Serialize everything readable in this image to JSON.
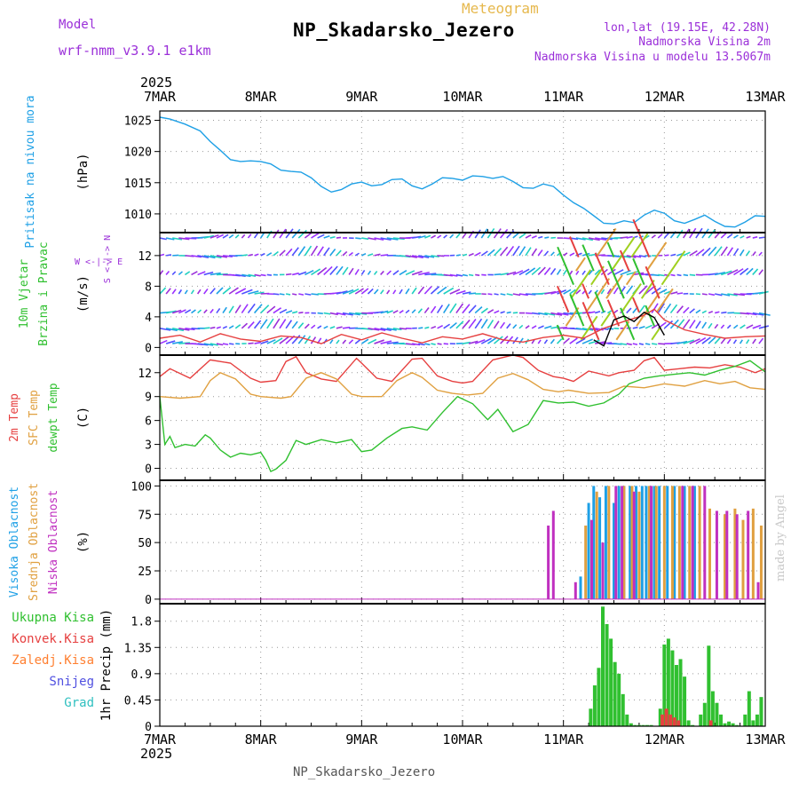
{
  "header": {
    "model_label": "Model",
    "model_value": "wrf-nmm_v3.9.1 e1km",
    "station": "NP_Skadarsko_Jezero",
    "meteogram": "Meteogram",
    "lonlat": "lon,lat (19.15E, 42.28N)",
    "altitude": "Nadmorska Visina 2m",
    "model_altitude": "Nadmorska Visina u modelu 13.5067m",
    "footer_station": "NP_Skadarsko_Jezero",
    "credit": "made by Angel"
  },
  "colors": {
    "pressure": "#1ea0e6",
    "temp2m": "#e64040",
    "sfc": "#e0a040",
    "dewpt": "#30c030",
    "cloud_high": "#1ea0e6",
    "cloud_mid": "#e0a040",
    "cloud_low": "#9b30d9",
    "precip_total": "#30c030",
    "precip_conv": "#e64040",
    "precip_frozen": "#ff7f30",
    "snow": "#5050e0",
    "hail": "#30c0c0",
    "purple": "#9b30d9",
    "wind_speed": "#e64040",
    "wind_dir": "#000000"
  },
  "chart_data": {
    "x_year": "2025",
    "x_ticks": [
      "7MAR",
      "8MAR",
      "9MAR",
      "10MAR",
      "11MAR",
      "12MAR",
      "13MAR"
    ],
    "panels": [
      {
        "id": "pressure",
        "type": "line",
        "labels": [
          {
            "text": "Pritisak na nivou mora",
            "color": "#1ea0e6"
          }
        ],
        "unit": "(hPa)",
        "ylim": [
          1007,
          1026.5
        ],
        "yticks": [
          1010,
          1015,
          1020,
          1025
        ],
        "series": [
          {
            "name": "Pritisak na nivou mora",
            "color": "#1ea0e6",
            "x": [
              0,
              0.1,
              0.25,
              0.4,
              0.5,
              0.6,
              0.7,
              0.8,
              0.9,
              1.0,
              1.1,
              1.2,
              1.3,
              1.4,
              1.5,
              1.6,
              1.7,
              1.8,
              1.9,
              2.0,
              2.1,
              2.2,
              2.3,
              2.4,
              2.5,
              2.6,
              2.7,
              2.8,
              2.9,
              3.0,
              3.1,
              3.2,
              3.3,
              3.4,
              3.5,
              3.6,
              3.7,
              3.8,
              3.9,
              4.0,
              4.1,
              4.2,
              4.3,
              4.4,
              4.5,
              4.6,
              4.7,
              4.8,
              4.9,
              5.0,
              5.1,
              5.2,
              5.3,
              5.4,
              5.5,
              5.6,
              5.7,
              5.8,
              5.9,
              6.0
            ],
            "y": [
              1025.5,
              1025.2,
              1024.4,
              1023.3,
              1021.6,
              1020.2,
              1018.7,
              1018.4,
              1018.5,
              1018.4,
              1018.0,
              1017.0,
              1016.8,
              1016.7,
              1015.8,
              1014.4,
              1013.5,
              1013.9,
              1014.8,
              1015.1,
              1014.5,
              1014.7,
              1015.5,
              1015.6,
              1014.5,
              1014.0,
              1014.8,
              1015.8,
              1015.7,
              1015.4,
              1016.1,
              1016.0,
              1015.7,
              1016.0,
              1015.2,
              1014.2,
              1014.1,
              1014.8,
              1014.4,
              1013.0,
              1011.8,
              1010.9,
              1009.7,
              1008.5,
              1008.4,
              1008.9,
              1008.6,
              1009.8,
              1010.6,
              1010.1,
              1008.9,
              1008.5,
              1009.1,
              1009.8,
              1008.8,
              1008.0,
              1007.9,
              1008.7,
              1009.7,
              1009.6
            ]
          }
        ]
      },
      {
        "id": "wind",
        "type": "line",
        "labels": [
          {
            "text": "10m Vjetar",
            "color": "#30c030"
          },
          {
            "text": "Brzina i Pravac",
            "color": "#30c030"
          }
        ],
        "unit": "(m/s)",
        "compass": "W <-|-> E",
        "compass_v": "S <-|-> N",
        "ylim": [
          -1,
          15
        ],
        "yticks": [
          0,
          4,
          8,
          12
        ],
        "series": [
          {
            "name": "speed",
            "color": "#e64040",
            "x": [
              0,
              0.2,
              0.4,
              0.6,
              0.8,
              1.0,
              1.2,
              1.4,
              1.6,
              1.8,
              2.0,
              2.2,
              2.4,
              2.6,
              2.8,
              3.0,
              3.2,
              3.4,
              3.6,
              3.8,
              4.0,
              4.2,
              4.4,
              4.6,
              4.8,
              4.9,
              5.0,
              5.2,
              5.4,
              5.6,
              5.8,
              6.0
            ],
            "y": [
              1.2,
              1.6,
              0.7,
              1.8,
              1.1,
              0.8,
              1.5,
              1.3,
              0.5,
              1.7,
              1.0,
              1.9,
              1.2,
              0.6,
              1.4,
              1.1,
              1.8,
              1.0,
              0.7,
              1.3,
              1.6,
              1.2,
              2.5,
              3.4,
              4.2,
              5.0,
              3.6,
              2.3,
              1.7,
              1.2,
              1.4,
              1.5
            ]
          },
          {
            "name": "direction",
            "color": "#000000",
            "x": [
              4.3,
              4.4,
              4.5,
              4.6,
              4.7,
              4.8,
              4.9,
              5.0
            ],
            "y": [
              1.0,
              0.2,
              3.6,
              4.1,
              3.4,
              4.6,
              3.9,
              1.6
            ]
          }
        ],
        "arrow_rows": [
          0.5,
          2.5,
          4.5,
          7.0,
          9.5,
          12.0,
          14.3
        ]
      },
      {
        "id": "temp",
        "type": "line",
        "labels": [
          {
            "text": "2m Temp",
            "color": "#e64040"
          },
          {
            "text": "SFC Temp",
            "color": "#e0a040"
          },
          {
            "text": "dewpt Temp",
            "color": "#30c030"
          }
        ],
        "unit": "(C)",
        "ylim": [
          -1.5,
          14.2
        ],
        "yticks": [
          0,
          3,
          6,
          9,
          12
        ],
        "series": [
          {
            "name": "2m Temp",
            "color": "#e64040",
            "x": [
              0,
              0.1,
              0.3,
              0.5,
              0.7,
              0.9,
              1.0,
              1.15,
              1.25,
              1.35,
              1.45,
              1.6,
              1.75,
              1.95,
              2.0,
              2.15,
              2.3,
              2.5,
              2.6,
              2.75,
              2.9,
              3.0,
              3.1,
              3.3,
              3.5,
              3.6,
              3.75,
              3.9,
              4.0,
              4.1,
              4.25,
              4.45,
              4.55,
              4.7,
              4.8,
              4.9,
              5.0,
              5.15,
              5.3,
              5.45,
              5.6,
              5.75,
              5.9,
              6.0
            ],
            "y": [
              11.5,
              12.5,
              11.3,
              13.6,
              13.2,
              11.3,
              10.8,
              11.0,
              13.4,
              14.0,
              12.0,
              11.2,
              10.9,
              13.8,
              13.2,
              11.3,
              10.9,
              13.7,
              13.8,
              11.6,
              10.9,
              10.7,
              10.9,
              13.6,
              14.2,
              13.9,
              12.3,
              11.5,
              11.3,
              10.9,
              12.2,
              11.6,
              12.0,
              12.3,
              13.5,
              13.9,
              12.3,
              12.5,
              12.7,
              12.6,
              13.0,
              12.7,
              12.0,
              12.5
            ]
          },
          {
            "name": "SFC Temp",
            "color": "#e0a040",
            "x": [
              0,
              0.2,
              0.4,
              0.5,
              0.6,
              0.75,
              0.9,
              1.0,
              1.2,
              1.3,
              1.45,
              1.6,
              1.75,
              1.9,
              2.0,
              2.2,
              2.35,
              2.5,
              2.6,
              2.75,
              2.9,
              3.05,
              3.2,
              3.35,
              3.5,
              3.65,
              3.8,
              3.95,
              4.05,
              4.25,
              4.45,
              4.6,
              4.8,
              5.0,
              5.2,
              5.4,
              5.55,
              5.7,
              5.85,
              6.0
            ],
            "y": [
              9.0,
              8.8,
              9.0,
              11.0,
              12.0,
              11.2,
              9.3,
              9.0,
              8.8,
              9.0,
              11.3,
              12.0,
              11.2,
              9.3,
              9.0,
              9.0,
              11.0,
              12.0,
              11.4,
              9.8,
              9.4,
              9.2,
              9.4,
              11.3,
              11.9,
              11.1,
              9.9,
              9.6,
              9.8,
              9.4,
              9.5,
              10.3,
              10.1,
              10.6,
              10.3,
              11.0,
              10.6,
              10.9,
              10.1,
              9.9
            ]
          },
          {
            "name": "dewpt Temp",
            "color": "#30c030",
            "x": [
              0,
              0.05,
              0.1,
              0.15,
              0.25,
              0.35,
              0.45,
              0.5,
              0.6,
              0.7,
              0.8,
              0.9,
              1.0,
              1.05,
              1.1,
              1.15,
              1.25,
              1.35,
              1.45,
              1.6,
              1.75,
              1.9,
              2.0,
              2.1,
              2.25,
              2.4,
              2.5,
              2.65,
              2.8,
              2.95,
              3.1,
              3.25,
              3.35,
              3.5,
              3.65,
              3.8,
              3.95,
              4.1,
              4.25,
              4.4,
              4.55,
              4.65,
              4.8,
              4.95,
              5.1,
              5.25,
              5.4,
              5.55,
              5.7,
              5.85,
              6.0
            ],
            "y": [
              9.0,
              3.0,
              4.0,
              2.6,
              3.0,
              2.8,
              4.2,
              3.8,
              2.3,
              1.4,
              1.9,
              1.7,
              2.0,
              1.0,
              -0.4,
              -0.1,
              1.0,
              3.5,
              3.0,
              3.6,
              3.2,
              3.6,
              2.1,
              2.3,
              3.8,
              5.0,
              5.2,
              4.8,
              7.0,
              9.0,
              8.1,
              6.1,
              7.4,
              4.6,
              5.5,
              8.5,
              8.2,
              8.3,
              7.8,
              8.2,
              9.3,
              10.6,
              11.3,
              11.6,
              11.8,
              12.0,
              11.7,
              12.3,
              12.8,
              13.5,
              12.1
            ]
          }
        ]
      },
      {
        "id": "cloud",
        "type": "bar",
        "labels": [
          {
            "text": "Visoka Oblacnost",
            "color": "#1ea0e6"
          },
          {
            "text": "Srednja Oblacnost",
            "color": "#e0a040"
          },
          {
            "text": "Niska Oblacnost",
            "color": "#c030c0"
          }
        ],
        "unit": "(%)",
        "ylim": [
          -4,
          105
        ],
        "yticks": [
          0,
          25,
          50,
          75,
          100
        ],
        "series": [
          {
            "name": "Visoka Oblacnost",
            "color": "#1ea0e6",
            "x": [
              4.17,
              4.25,
              4.3,
              4.36,
              4.42,
              4.5,
              4.55,
              4.6,
              4.66,
              4.72,
              4.78,
              4.82,
              4.86,
              4.9,
              4.95,
              5.03,
              5.1,
              5.2,
              5.3
            ],
            "y": [
              20,
              85,
              100,
              90,
              100,
              85,
              100,
              100,
              100,
              100,
              100,
              100,
              100,
              100,
              100,
              100,
              100,
              100,
              100
            ]
          },
          {
            "name": "Srednja Oblacnost",
            "color": "#e0a040",
            "x": [
              4.22,
              4.33,
              4.45,
              4.6,
              4.68,
              4.75,
              4.85,
              4.92,
              5.0,
              5.08,
              5.15,
              5.25,
              5.35,
              5.45,
              5.6,
              5.7,
              5.78,
              5.88,
              5.96
            ],
            "y": [
              65,
              95,
              100,
              100,
              100,
              95,
              100,
              100,
              100,
              100,
              100,
              100,
              100,
              80,
              75,
              80,
              70,
              80,
              65
            ]
          },
          {
            "name": "Niska Oblacnost",
            "color": "#c030c0",
            "x": [
              3.85,
              3.9,
              4.12,
              4.28,
              4.39,
              4.52,
              4.58,
              4.7,
              4.87,
              5.18,
              5.28,
              5.4,
              5.52,
              5.62,
              5.72,
              5.83,
              5.93
            ],
            "y": [
              65,
              78,
              15,
              70,
              50,
              100,
              100,
              95,
              100,
              100,
              100,
              100,
              78,
              78,
              75,
              78,
              15
            ]
          }
        ]
      },
      {
        "id": "precip",
        "type": "bar",
        "labels": [
          {
            "text": "Ukupna Kisa",
            "color": "#30c030"
          },
          {
            "text": "Konvek.Kisa",
            "color": "#e64040"
          },
          {
            "text": "Zaledj.Kisa",
            "color": "#ff7f30"
          },
          {
            "text": "Snijeg",
            "color": "#5050e0"
          },
          {
            "text": "Grad",
            "color": "#30c0c0"
          }
        ],
        "unit": "1hr Precip (mm)",
        "ylim": [
          0,
          2.1
        ],
        "yticks": [
          0,
          0.45,
          0.9,
          1.35,
          1.8
        ],
        "series": [
          {
            "name": "Ukupna Kisa",
            "color": "#30c030",
            "x": [
              4.27,
              4.31,
              4.35,
              4.39,
              4.43,
              4.47,
              4.51,
              4.55,
              4.59,
              4.63,
              4.67,
              4.71,
              4.75,
              4.79,
              4.83,
              4.87,
              4.96,
              5.0,
              5.04,
              5.08,
              5.12,
              5.16,
              5.2,
              5.24,
              5.28,
              5.36,
              5.4,
              5.44,
              5.48,
              5.52,
              5.56,
              5.6,
              5.64,
              5.68,
              5.72,
              5.8,
              5.84,
              5.88,
              5.92,
              5.96
            ],
            "y": [
              0.3,
              0.7,
              1.0,
              2.05,
              1.75,
              1.5,
              1.1,
              0.9,
              0.55,
              0.2,
              0.05,
              0.02,
              0.02,
              0.02,
              0.02,
              0.02,
              0.3,
              1.4,
              1.5,
              1.3,
              1.05,
              1.15,
              0.85,
              0.1,
              0.02,
              0.2,
              0.4,
              1.38,
              0.6,
              0.4,
              0.2,
              0.05,
              0.08,
              0.05,
              0.02,
              0.2,
              0.6,
              0.1,
              0.2,
              0.5
            ]
          },
          {
            "name": "Konvek.Kisa",
            "color": "#e64040",
            "x": [
              4.98,
              5.02,
              5.06,
              5.1,
              5.14,
              5.46
            ],
            "y": [
              0.2,
              0.3,
              0.2,
              0.15,
              0.1,
              0.1
            ]
          }
        ]
      }
    ]
  }
}
